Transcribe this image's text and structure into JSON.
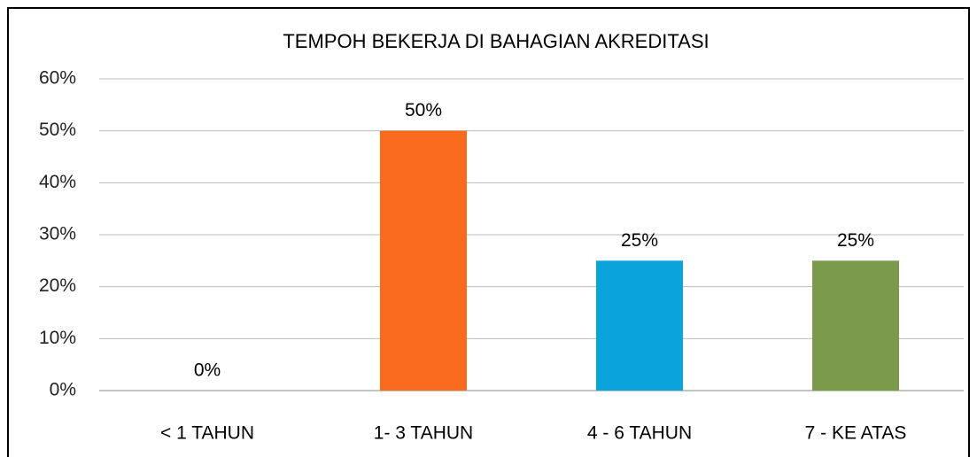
{
  "chart_data": {
    "type": "bar",
    "title": "TEMPOH BEKERJA DI BAHAGIAN AKREDITASI",
    "categories": [
      "< 1 TAHUN",
      "1- 3 TAHUN",
      "4 - 6 TAHUN",
      "7 - KE ATAS"
    ],
    "values": [
      0,
      50,
      25,
      25
    ],
    "value_labels": [
      "0%",
      "50%",
      "25%",
      "25%"
    ],
    "colors": [
      "#4f81bd",
      "#f96b1c",
      "#0ba3db",
      "#7b994b"
    ],
    "ylim": [
      0,
      60
    ],
    "yticks": [
      {
        "value": 0,
        "label": "0%"
      },
      {
        "value": 10,
        "label": "10%"
      },
      {
        "value": 20,
        "label": "20%"
      },
      {
        "value": 30,
        "label": "30%"
      },
      {
        "value": 40,
        "label": "40%"
      },
      {
        "value": 50,
        "label": "50%"
      },
      {
        "value": 60,
        "label": "60%"
      }
    ],
    "grid": true
  }
}
